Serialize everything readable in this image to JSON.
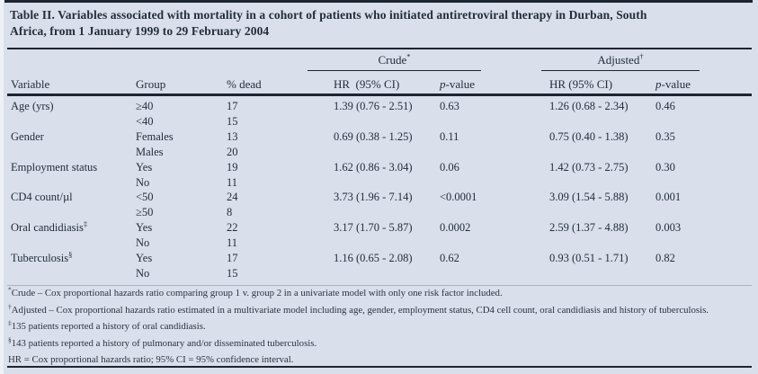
{
  "colors": {
    "background": "#d9e0ec",
    "ink": "#242d3b",
    "rule": "#1d2531"
  },
  "title": {
    "line1": "Table II. Variables associated with mortality in a cohort of patients who initiated antiretroviral therapy in Durban, South",
    "line2": "Africa, from 1 January 1999 to 29 February 2004"
  },
  "header": {
    "crude_label": "Crude",
    "crude_sup": "*",
    "adjusted_label": "Adjusted",
    "adjusted_sup": "†",
    "columns": {
      "variable": "Variable",
      "group": "Group",
      "pct_dead": "% dead",
      "hr_crude": "HR  (95% CI)",
      "hr_adj": "HR (95% CI)",
      "p_italic": "p",
      "p_rest": "-value"
    }
  },
  "table": {
    "rows": [
      {
        "variable": "Age (yrs)",
        "variable_sup": "",
        "group": "≥40",
        "pct_dead": "17",
        "crude_hr": "1.39 (0.76 - 2.51)",
        "crude_p": "0.63",
        "adj_hr": "1.26 (0.68 - 2.34)",
        "adj_p": "0.46"
      },
      {
        "variable": "",
        "variable_sup": "",
        "group": "<40",
        "pct_dead": "15",
        "crude_hr": "",
        "crude_p": "",
        "adj_hr": "",
        "adj_p": ""
      },
      {
        "variable": "Gender",
        "variable_sup": "",
        "group": "Females",
        "pct_dead": "13",
        "crude_hr": "0.69 (0.38 - 1.25)",
        "crude_p": "0.11",
        "adj_hr": "0.75 (0.40 - 1.38)",
        "adj_p": "0.35"
      },
      {
        "variable": "",
        "variable_sup": "",
        "group": "Males",
        "pct_dead": "20",
        "crude_hr": "",
        "crude_p": "",
        "adj_hr": "",
        "adj_p": ""
      },
      {
        "variable": "Employment status",
        "variable_sup": "",
        "group": "Yes",
        "pct_dead": "19",
        "crude_hr": "1.62 (0.86 - 3.04)",
        "crude_p": "0.06",
        "adj_hr": "1.42 (0.73 - 2.75)",
        "adj_p": "0.30"
      },
      {
        "variable": "",
        "variable_sup": "",
        "group": "No",
        "pct_dead": "11",
        "crude_hr": "",
        "crude_p": "",
        "adj_hr": "",
        "adj_p": ""
      },
      {
        "variable": "CD4 count/µl",
        "variable_sup": "",
        "group": "<50",
        "pct_dead": "24",
        "crude_hr": "3.73 (1.96 - 7.14)",
        "crude_p": "<0.0001",
        "adj_hr": "3.09 (1.54 - 5.88)",
        "adj_p": "0.001"
      },
      {
        "variable": "",
        "variable_sup": "",
        "group": "≥50",
        "pct_dead": "8",
        "crude_hr": "",
        "crude_p": "",
        "adj_hr": "",
        "adj_p": ""
      },
      {
        "variable": "Oral candidiasis",
        "variable_sup": "‡",
        "group": "Yes",
        "pct_dead": "22",
        "crude_hr": "3.17 (1.70 - 5.87)",
        "crude_p": "0.0002",
        "adj_hr": "2.59 (1.37 - 4.88)",
        "adj_p": "0.003"
      },
      {
        "variable": "",
        "variable_sup": "",
        "group": "No",
        "pct_dead": "11",
        "crude_hr": "",
        "crude_p": "",
        "adj_hr": "",
        "adj_p": ""
      },
      {
        "variable": "Tuberculosis",
        "variable_sup": "§",
        "group": "Yes",
        "pct_dead": "17",
        "crude_hr": "1.16 (0.65 - 2.08)",
        "crude_p": "0.62",
        "adj_hr": "0.93 (0.51 - 1.71)",
        "adj_p": "0.82"
      },
      {
        "variable": "",
        "variable_sup": "",
        "group": "No",
        "pct_dead": "15",
        "crude_hr": "",
        "crude_p": "",
        "adj_hr": "",
        "adj_p": ""
      }
    ]
  },
  "footnotes": [
    {
      "sup": "*",
      "text": "Crude – Cox proportional hazards ratio comparing group 1 v. group 2 in a univariate model with only one risk factor included."
    },
    {
      "sup": "†",
      "text": "Adjusted – Cox proportional hazards ratio estimated in a multivariate model including age, gender, employment status, CD4 cell count, oral candidiasis and history of tuberculosis."
    },
    {
      "sup": "‡",
      "text": "135 patients reported a history of oral candidiasis."
    },
    {
      "sup": "§",
      "text": "143 patients reported a history of pulmonary and/or disseminated tuberculosis."
    },
    {
      "sup": "",
      "text": "HR = Cox proportional hazards ratio; 95% CI = 95% confidence interval."
    }
  ]
}
